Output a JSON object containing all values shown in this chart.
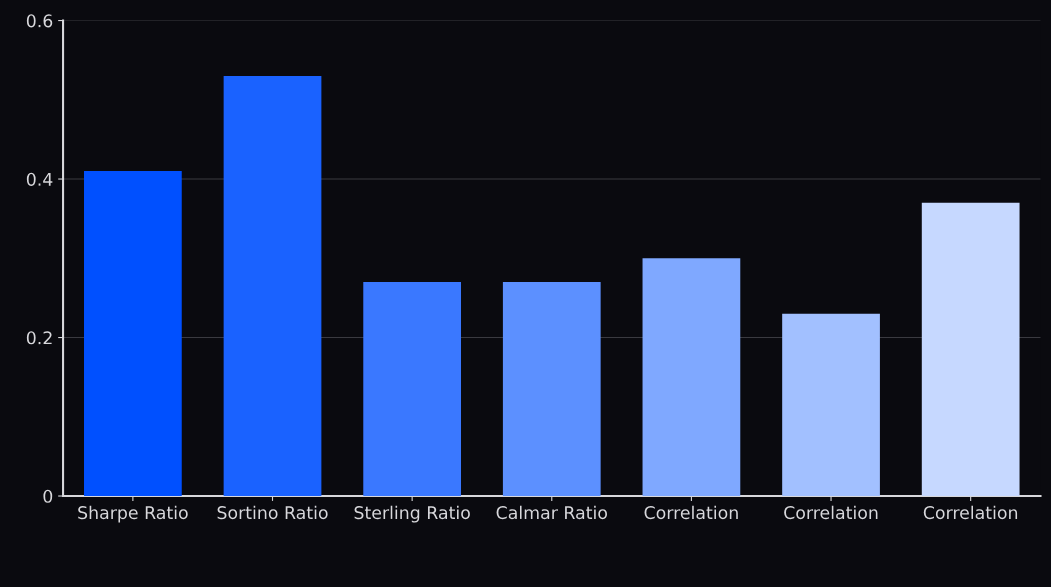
{
  "chart_data": {
    "type": "bar",
    "categories": [
      "Sharpe Ratio",
      "Sortino Ratio",
      "Sterling Ratio",
      "Calmar Ratio",
      "Correlation",
      "Correlation",
      "Correlation"
    ],
    "values": [
      0.41,
      0.53,
      0.27,
      0.27,
      0.3,
      0.23,
      0.37
    ],
    "colors": [
      "#0050ff",
      "#1a62ff",
      "#3a78ff",
      "#5c90ff",
      "#7fa8ff",
      "#a2c0ff",
      "#c6d8ff"
    ],
    "ylim": [
      0,
      0.6
    ],
    "yticks": [
      0,
      0.2,
      0.4,
      0.6
    ],
    "grid": "y"
  }
}
